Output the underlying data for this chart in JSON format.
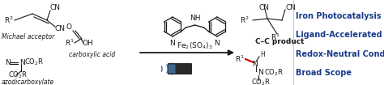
{
  "background_color": "#ffffff",
  "bullet_points": [
    "Iron Photocatalysis",
    "Ligand-Accelerated Process",
    "Redox-Neutral Conditions",
    "Broad Scope"
  ],
  "bullet_color": "#1a3a8c",
  "bullet_fontsize": 7.0,
  "figsize": [
    4.74,
    1.05
  ],
  "dpi": 100,
  "black": "#1a1a1a",
  "dark_blue": "#1a3a8c",
  "red": "#cc0000"
}
